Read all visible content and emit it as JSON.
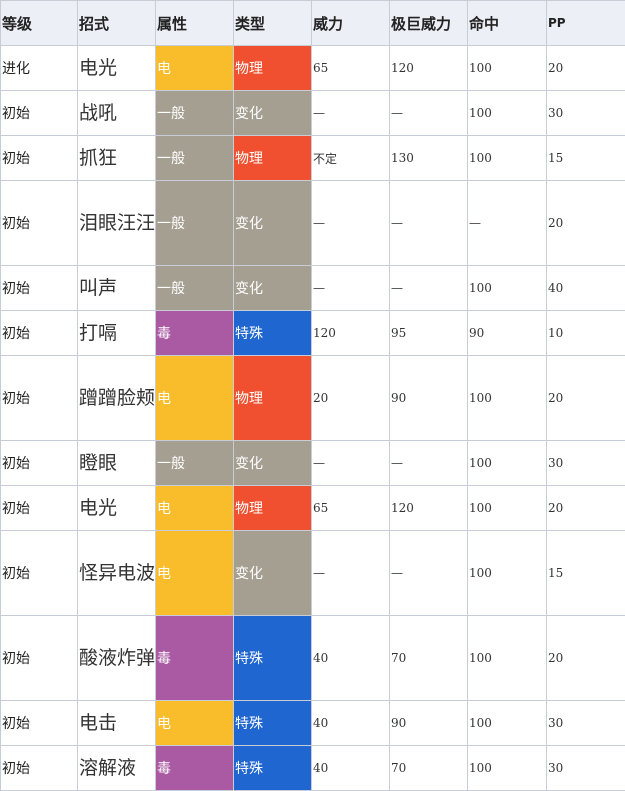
{
  "headers": [
    "等级",
    "招式",
    "属性",
    "类型",
    "威力",
    "极巨威力",
    "命中",
    "PP"
  ],
  "type_colors": {
    "电": "#f9bd2b",
    "一般": "#a59f91",
    "毒": "#a95aa2",
    "物理": "#f0502f",
    "变化": "#a59f91",
    "特殊": "#2066d0"
  },
  "rows": [
    {
      "level": "进化",
      "move": "电光",
      "type": "电",
      "category": "物理",
      "power": "65",
      "max_power": "120",
      "accuracy": "100",
      "pp": "20",
      "lines": 1
    },
    {
      "level": "初始",
      "move": "战吼",
      "type": "一般",
      "category": "变化",
      "power": "—",
      "max_power": "—",
      "accuracy": "100",
      "pp": "30",
      "lines": 1
    },
    {
      "level": "初始",
      "move": "抓狂",
      "type": "一般",
      "category": "物理",
      "power": "不定",
      "max_power": "130",
      "accuracy": "100",
      "pp": "15",
      "lines": 1
    },
    {
      "level": "初始",
      "move": "泪眼汪汪",
      "type": "一般",
      "category": "变化",
      "power": "—",
      "max_power": "—",
      "accuracy": "—",
      "pp": "20",
      "lines": 2
    },
    {
      "level": "初始",
      "move": "叫声",
      "type": "一般",
      "category": "变化",
      "power": "—",
      "max_power": "—",
      "accuracy": "100",
      "pp": "40",
      "lines": 1
    },
    {
      "level": "初始",
      "move": "打嗝",
      "type": "毒",
      "category": "特殊",
      "power": "120",
      "max_power": "95",
      "accuracy": "90",
      "pp": "10",
      "lines": 1
    },
    {
      "level": "初始",
      "move": "蹭蹭脸颊",
      "type": "电",
      "category": "物理",
      "power": "20",
      "max_power": "90",
      "accuracy": "100",
      "pp": "20",
      "lines": 2
    },
    {
      "level": "初始",
      "move": "瞪眼",
      "type": "一般",
      "category": "变化",
      "power": "—",
      "max_power": "—",
      "accuracy": "100",
      "pp": "30",
      "lines": 1
    },
    {
      "level": "初始",
      "move": "电光",
      "type": "电",
      "category": "物理",
      "power": "65",
      "max_power": "120",
      "accuracy": "100",
      "pp": "20",
      "lines": 1
    },
    {
      "level": "初始",
      "move": "怪异电波",
      "type": "电",
      "category": "变化",
      "power": "—",
      "max_power": "—",
      "accuracy": "100",
      "pp": "15",
      "lines": 2
    },
    {
      "level": "初始",
      "move": "酸液炸弹",
      "type": "毒",
      "category": "特殊",
      "power": "40",
      "max_power": "70",
      "accuracy": "100",
      "pp": "20",
      "lines": 2
    },
    {
      "level": "初始",
      "move": "电击",
      "type": "电",
      "category": "特殊",
      "power": "40",
      "max_power": "90",
      "accuracy": "100",
      "pp": "30",
      "lines": 1
    },
    {
      "level": "初始",
      "move": "溶解液",
      "type": "毒",
      "category": "特殊",
      "power": "40",
      "max_power": "70",
      "accuracy": "100",
      "pp": "30",
      "lines": 1
    }
  ]
}
